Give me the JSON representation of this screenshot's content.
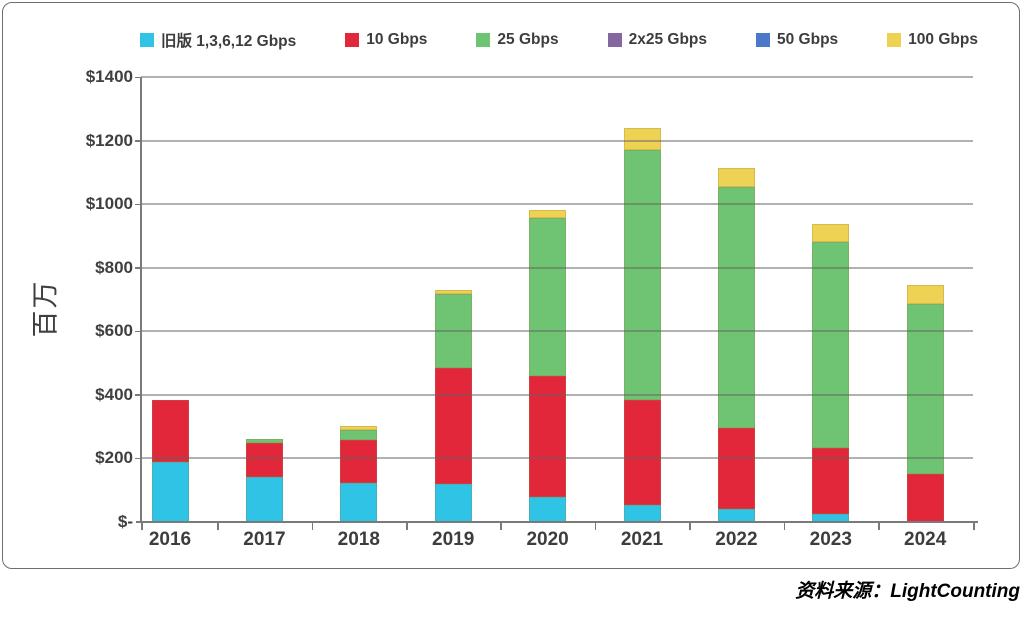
{
  "y_axis": {
    "title": "百万",
    "tick_labels_bottom_up": [
      "$-",
      "$200",
      "$400",
      "$600",
      "$800",
      "$1000",
      "$1200",
      "$1400"
    ]
  },
  "footer": {
    "source": "资料来源：LightCounting"
  },
  "chart_data": {
    "type": "bar",
    "stacked": true,
    "title": "",
    "xlabel": "",
    "ylabel": "百万",
    "ylim": [
      0,
      1400
    ],
    "ytick_step": 200,
    "grid": true,
    "legend_position": "top",
    "categories": [
      "2016",
      "2017",
      "2018",
      "2019",
      "2020",
      "2021",
      "2022",
      "2023",
      "2024"
    ],
    "series": [
      {
        "name": "旧版 1,3,6,12 Gbps",
        "color": "#2FC3E6",
        "values": [
          190,
          142,
          122,
          120,
          78,
          55,
          40,
          25,
          0
        ]
      },
      {
        "name": "10 Gbps",
        "color": "#E2273B",
        "values": [
          195,
          106,
          135,
          365,
          380,
          330,
          255,
          207,
          150
        ]
      },
      {
        "name": "25 Gbps",
        "color": "#6EC472",
        "values": [
          0,
          14,
          33,
          233,
          500,
          785,
          760,
          650,
          535
        ]
      },
      {
        "name": "2x25 Gbps",
        "color": "#8566A0",
        "values": [
          0,
          0,
          0,
          0,
          0,
          0,
          0,
          0,
          0
        ]
      },
      {
        "name": "50 Gbps",
        "color": "#4B78C8",
        "values": [
          0,
          0,
          0,
          0,
          0,
          0,
          0,
          0,
          0
        ]
      },
      {
        "name": "100 Gbps",
        "color": "#EDD254",
        "values": [
          0,
          0,
          13,
          13,
          25,
          70,
          60,
          55,
          62
        ]
      }
    ]
  }
}
